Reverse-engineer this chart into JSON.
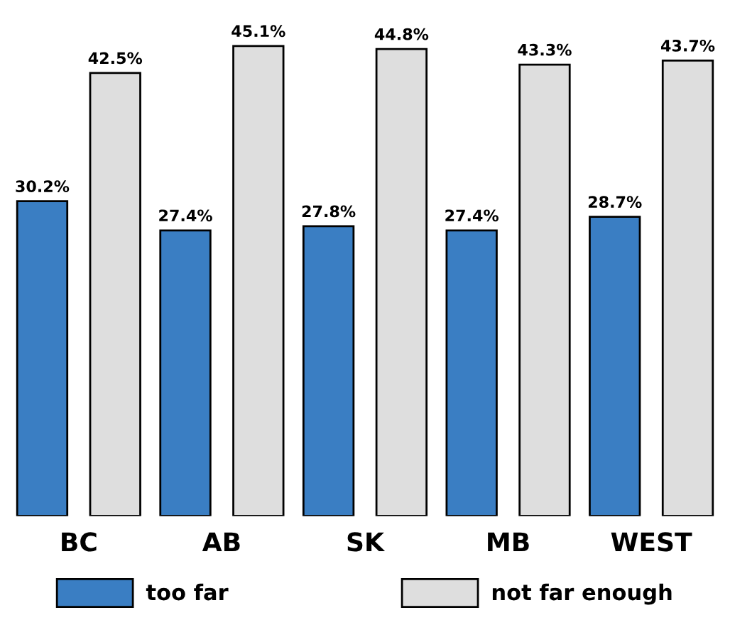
{
  "chart_data": {
    "type": "bar",
    "categories": [
      "BC",
      "AB",
      "SK",
      "MB",
      "WEST"
    ],
    "series": [
      {
        "name": "too far",
        "color": "#3a7ec3",
        "values": [
          30.2,
          27.4,
          27.8,
          27.4,
          28.7
        ],
        "value_labels": [
          "30.2%",
          "27.4%",
          "27.8%",
          "27.4%",
          "28.7%"
        ]
      },
      {
        "name": "not far enough",
        "color": "#dedede",
        "values": [
          42.5,
          45.1,
          44.8,
          43.3,
          43.7
        ],
        "value_labels": [
          "42.5%",
          "45.1%",
          "44.8%",
          "43.3%",
          "43.7%"
        ]
      }
    ],
    "legend": "bottom",
    "grid": false
  }
}
